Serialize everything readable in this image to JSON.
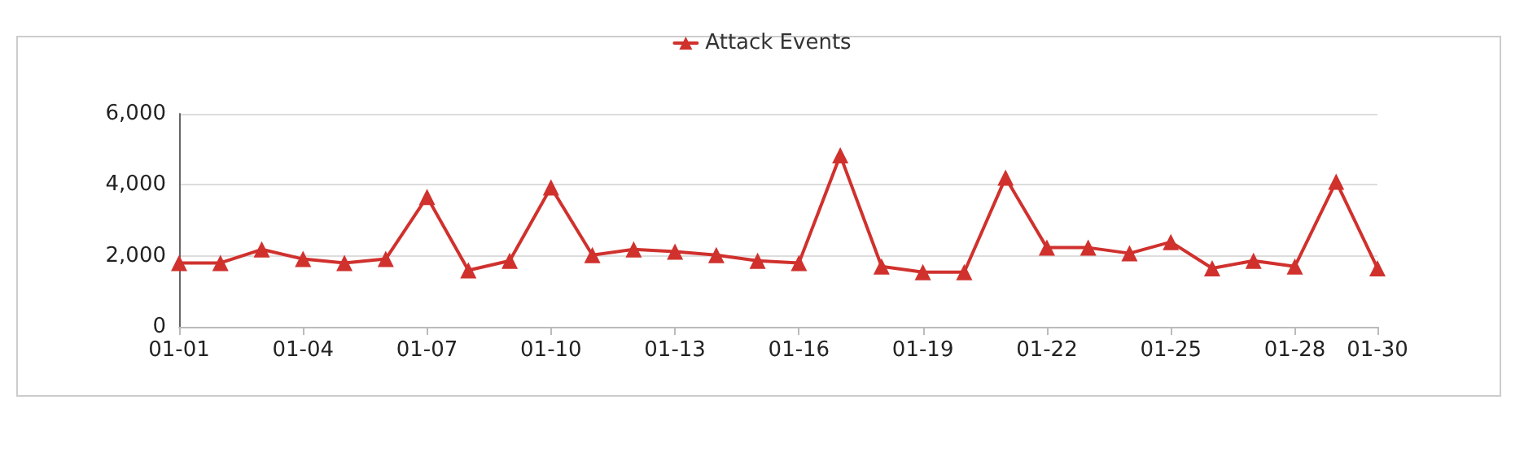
{
  "chart_data": {
    "type": "line",
    "categories": [
      "01-01",
      null,
      null,
      "01-04",
      null,
      null,
      "01-07",
      null,
      null,
      "01-10",
      null,
      null,
      "01-13",
      null,
      null,
      "01-16",
      null,
      null,
      "01-19",
      null,
      null,
      "01-22",
      null,
      null,
      "01-25",
      null,
      null,
      "01-28",
      null,
      "01-30"
    ],
    "series": [
      {
        "name": "Attack Events",
        "color": "#d0312d",
        "values": [
          1800,
          1800,
          2180,
          1910,
          1800,
          1910,
          3660,
          1590,
          1860,
          3930,
          2020,
          2180,
          2120,
          2020,
          1860,
          1800,
          4830,
          1700,
          1540,
          1540,
          4200,
          2230,
          2230,
          2070,
          2390,
          1650,
          1860,
          1700,
          4090,
          1650
        ]
      }
    ],
    "ylim": [
      0,
      6000
    ],
    "yticks": [
      0,
      {
        "value": 2000,
        "label": "2,000"
      },
      {
        "value": 4000,
        "label": "4,000"
      },
      {
        "value": 6000,
        "label": "6,000"
      }
    ],
    "grid": "y",
    "legend": "top",
    "marker": "triangle",
    "line_style": "solid"
  }
}
